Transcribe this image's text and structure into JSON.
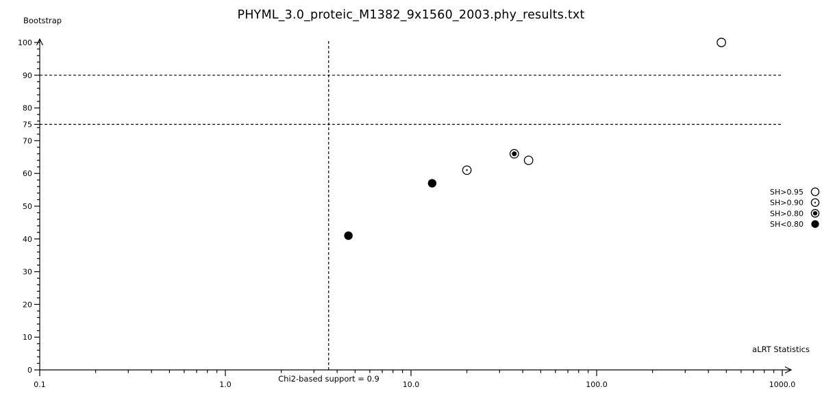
{
  "chart_data": {
    "type": "scatter",
    "title": "PHYML_3.0_proteic_M1382_9x1560_2003.phy_results.txt",
    "xlabel": "aLRT Statistics",
    "ylabel": "Bootstrap",
    "x_scale": "log",
    "xlim": [
      0.1,
      1000.0
    ],
    "ylim": [
      0,
      100
    ],
    "grid": false,
    "x_major_ticks": [
      {
        "v": 0.1,
        "label": "0.1"
      },
      {
        "v": 1.0,
        "label": "1.0"
      },
      {
        "v": 10.0,
        "label": "10.0"
      },
      {
        "v": 100.0,
        "label": "100.0"
      },
      {
        "v": 1000.0,
        "label": "1000.0"
      }
    ],
    "y_major_ticks": [
      {
        "v": 0,
        "label": "0"
      },
      {
        "v": 10,
        "label": "10"
      },
      {
        "v": 20,
        "label": "20"
      },
      {
        "v": 30,
        "label": "30"
      },
      {
        "v": 40,
        "label": "40"
      },
      {
        "v": 50,
        "label": "50"
      },
      {
        "v": 60,
        "label": "60"
      },
      {
        "v": 70,
        "label": "70"
      },
      {
        "v": 75,
        "label": "75"
      },
      {
        "v": 80,
        "label": "80"
      },
      {
        "v": 90,
        "label": "90"
      },
      {
        "v": 100,
        "label": "100"
      }
    ],
    "y_minor_step": 2,
    "series": [
      {
        "name": "SH>0.95",
        "marker": "open",
        "points": [
          {
            "x": 43,
            "y": 64
          },
          {
            "x": 470,
            "y": 100
          }
        ]
      },
      {
        "name": "SH>0.90",
        "marker": "dot",
        "points": [
          {
            "x": 20,
            "y": 61
          }
        ]
      },
      {
        "name": "SH>0.80",
        "marker": "bullseye",
        "points": [
          {
            "x": 36,
            "y": 66
          }
        ]
      },
      {
        "name": "SH<0.80",
        "marker": "filled",
        "points": [
          {
            "x": 4.6,
            "y": 41
          },
          {
            "x": 13,
            "y": 57
          }
        ]
      }
    ],
    "reference_lines": {
      "horizontal_y": [
        90,
        75
      ],
      "vertical": {
        "x": 3.6,
        "label": "Chi2-based support = 0.9"
      }
    },
    "legend": [
      {
        "label": "SH>0.95",
        "marker": "open"
      },
      {
        "label": "SH>0.90",
        "marker": "dot"
      },
      {
        "label": "SH>0.80",
        "marker": "bullseye"
      },
      {
        "label": "SH<0.80",
        "marker": "filled"
      }
    ],
    "legend_position": "right",
    "colors": {
      "foreground": "#000000",
      "background": "#ffffff"
    }
  }
}
